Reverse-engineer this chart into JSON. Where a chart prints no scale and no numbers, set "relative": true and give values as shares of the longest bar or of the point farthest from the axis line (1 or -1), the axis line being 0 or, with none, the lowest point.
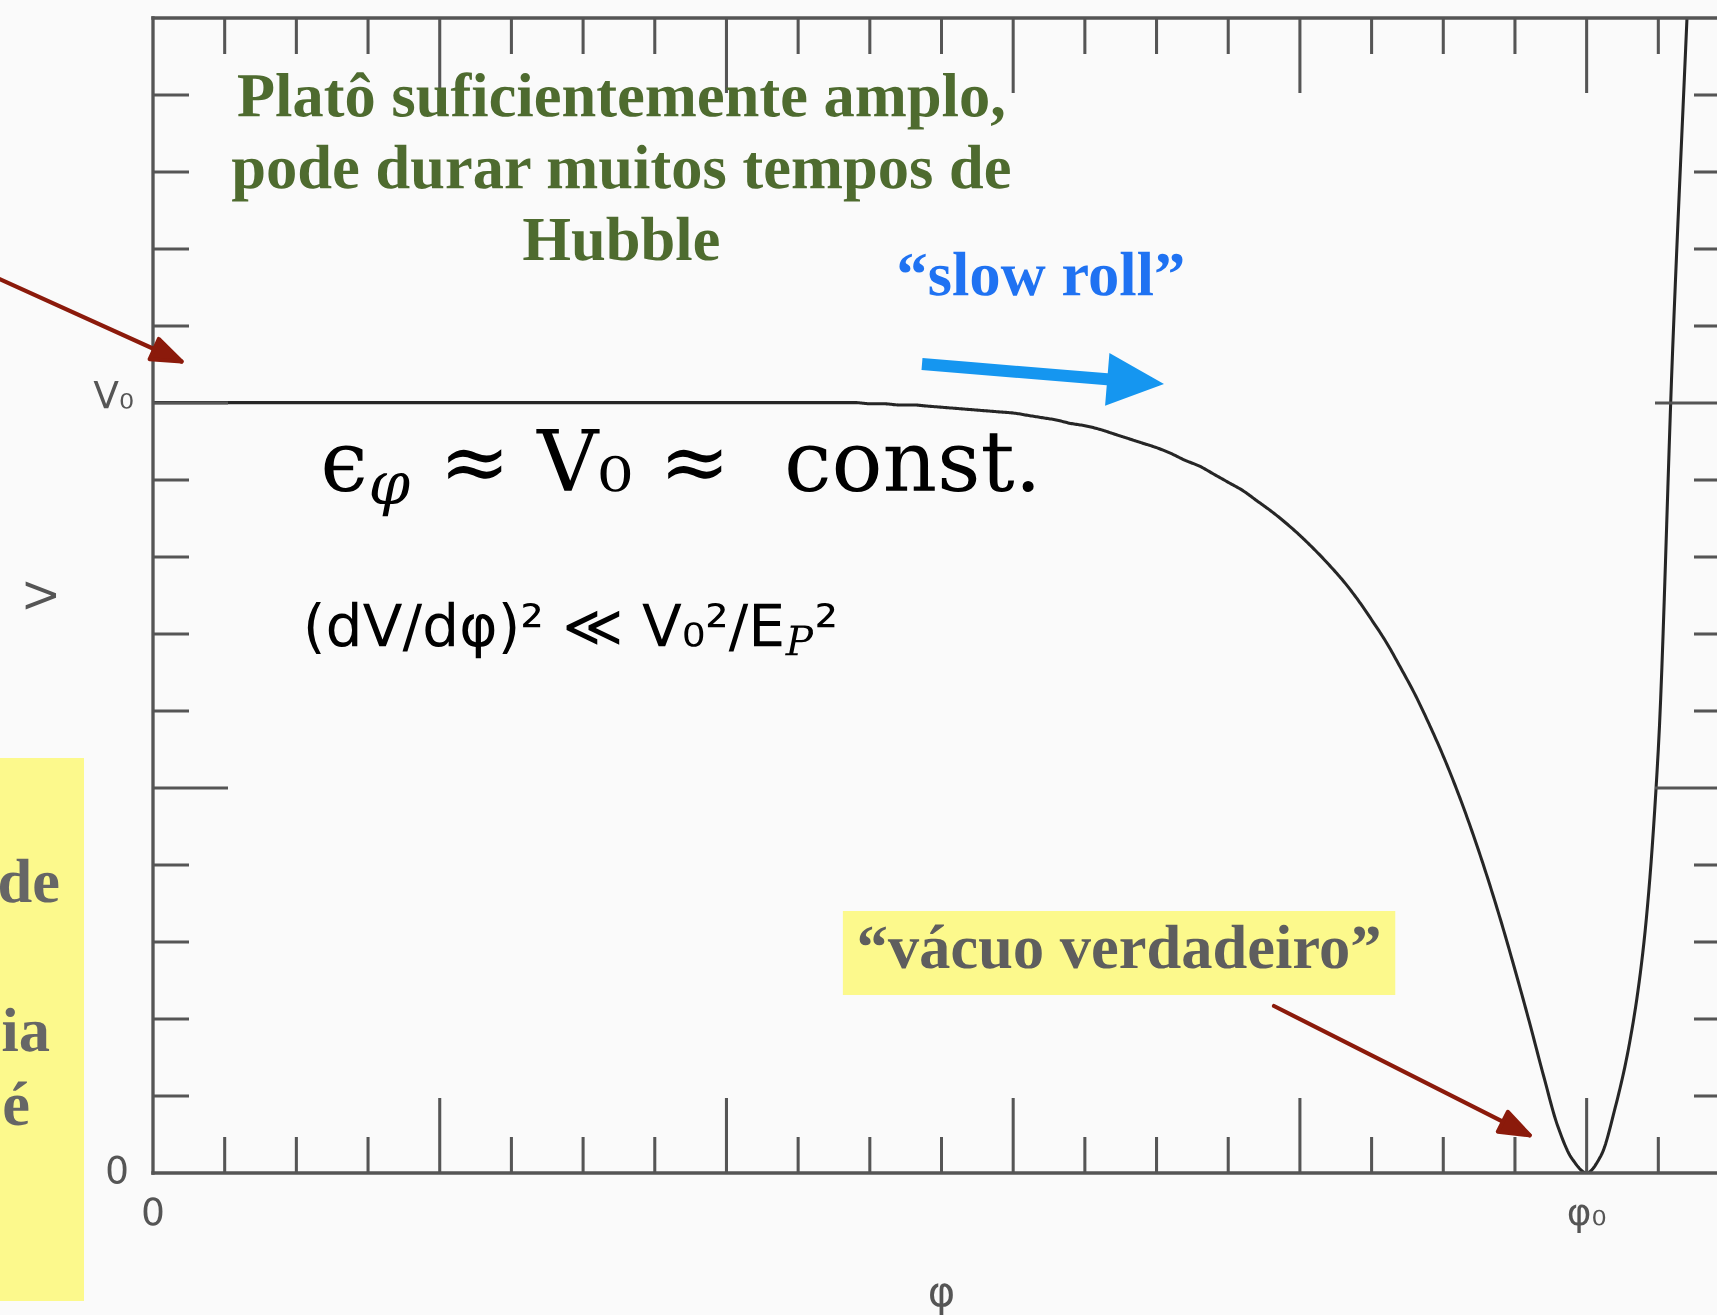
{
  "chart_data": {
    "type": "line",
    "relative": true,
    "xlabel": "φ",
    "ylabel": "V",
    "categories": [
      "0",
      null,
      null,
      null,
      null,
      null,
      null,
      null,
      null,
      null,
      null,
      null,
      null,
      null,
      null,
      null,
      null,
      null,
      null,
      null,
      null,
      null,
      null,
      null,
      null,
      null,
      null,
      null,
      null,
      null,
      null,
      null,
      null,
      null,
      null,
      null,
      null,
      null,
      null,
      null,
      null,
      null,
      null,
      null,
      null,
      null,
      null,
      null,
      null,
      null,
      null,
      null,
      null,
      null,
      null,
      null,
      null,
      null,
      null,
      null,
      null,
      null,
      null,
      null,
      null,
      null,
      null,
      null,
      null,
      null,
      null,
      null,
      null,
      null,
      null,
      null,
      null,
      null,
      null,
      null,
      null,
      null,
      null,
      null,
      null,
      null,
      null,
      null,
      null,
      null,
      null,
      null,
      null,
      null,
      null,
      null,
      null,
      null,
      null,
      null,
      "φ₀",
      null,
      null,
      null,
      null,
      null,
      null,
      null,
      null,
      null,
      null
    ],
    "series": [
      {
        "color": "#262626",
        "values": [
          0.667,
          0.667,
          0.667,
          0.667,
          0.667,
          0.667,
          0.667,
          0.667,
          0.667,
          0.667,
          0.667,
          0.667,
          0.667,
          0.667,
          0.667,
          0.667,
          0.667,
          0.667,
          0.667,
          0.667,
          0.667,
          0.667,
          0.667,
          0.667,
          0.667,
          0.667,
          0.667,
          0.667,
          0.667,
          0.667,
          0.667,
          0.667,
          0.667,
          0.667,
          0.667,
          0.667,
          0.667,
          0.667,
          0.667,
          0.667,
          0.667,
          0.667,
          0.667,
          0.667,
          0.667,
          0.667,
          0.667,
          0.667,
          0.667,
          0.667,
          0.666,
          0.666,
          0.665,
          0.665,
          0.664,
          0.663,
          0.662,
          0.661,
          0.66,
          0.659,
          0.658,
          0.656,
          0.654,
          0.652,
          0.649,
          0.647,
          0.644,
          0.64,
          0.636,
          0.632,
          0.628,
          0.623,
          0.617,
          0.612,
          0.605,
          0.598,
          0.591,
          0.582,
          0.573,
          0.563,
          0.552,
          0.54,
          0.527,
          0.513,
          0.497,
          0.479,
          0.46,
          0.438,
          0.415,
          0.389,
          0.361,
          0.33,
          0.296,
          0.259,
          0.219,
          0.176,
          0.131,
          0.084,
          0.04,
          0.012,
          0,
          0.015,
          0.057,
          0.113,
          0.2,
          0.367,
          0.713,
          1,
          null,
          null,
          null
        ]
      }
    ],
    "annotations": [
      "Platô suficientemente amplo,\npode durar muitos tempos de\nHubble",
      "“slow roll”",
      "ϵ$_{φ}$ ≈ V₀ ≈  const.",
      "(dV/dφ)² ≪ V₀²/E$_{P}$²",
      "“vácuo verdadeiro”",
      "de",
      "ia",
      "é",
      "V₀",
      "0"
    ]
  }
}
